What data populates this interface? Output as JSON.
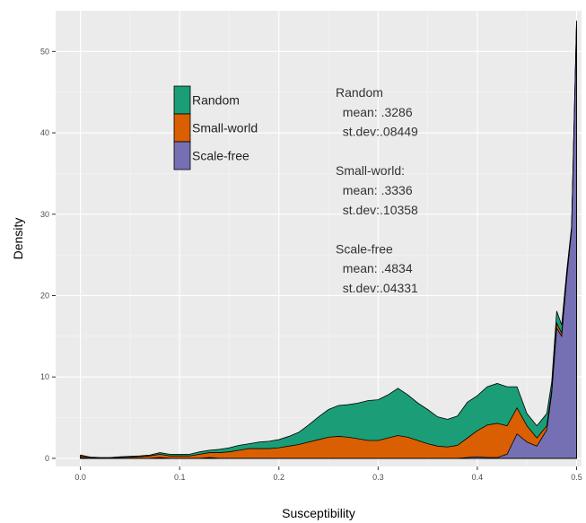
{
  "chart_data": {
    "type": "area",
    "stacked": true,
    "xlabel": "Susceptibility",
    "ylabel": "Density",
    "xlim": [
      -0.025,
      0.505
    ],
    "ylim": [
      -1,
      55
    ],
    "x_ticks": [
      0.0,
      0.1,
      0.2,
      0.3,
      0.4,
      0.5
    ],
    "x_tick_labels": [
      "0.0",
      "0.1",
      "0.2",
      "0.3",
      "0.4",
      "0.5"
    ],
    "y_ticks": [
      0,
      10,
      20,
      30,
      40,
      50
    ],
    "y_tick_labels": [
      "0",
      "10",
      "20",
      "30",
      "40",
      "50"
    ],
    "grid": true,
    "legend_position": "top-left",
    "x": [
      0.0,
      0.01,
      0.02,
      0.03,
      0.04,
      0.05,
      0.06,
      0.07,
      0.08,
      0.09,
      0.1,
      0.11,
      0.12,
      0.13,
      0.14,
      0.15,
      0.16,
      0.17,
      0.18,
      0.19,
      0.2,
      0.21,
      0.22,
      0.23,
      0.24,
      0.25,
      0.26,
      0.27,
      0.28,
      0.29,
      0.3,
      0.31,
      0.32,
      0.33,
      0.34,
      0.35,
      0.36,
      0.37,
      0.38,
      0.39,
      0.4,
      0.41,
      0.42,
      0.43,
      0.44,
      0.45,
      0.46,
      0.47,
      0.475,
      0.48,
      0.485,
      0.49,
      0.495,
      0.5
    ],
    "series": [
      {
        "name": "Scale-free",
        "color": "#7570b3",
        "values": [
          0.1,
          0,
          0,
          0,
          0,
          0,
          0,
          0,
          0.1,
          0,
          0,
          0,
          0,
          0.1,
          0,
          0,
          0,
          0,
          0,
          0,
          0,
          0,
          0,
          0,
          0,
          0,
          0,
          0,
          0,
          0,
          0,
          0,
          0,
          0,
          0,
          0,
          0,
          0,
          0,
          0.1,
          0.2,
          0.1,
          0.1,
          0.5,
          3.0,
          2.0,
          1.5,
          3.5,
          8.0,
          16.0,
          15.0,
          22.0,
          28.0,
          53.0
        ]
      },
      {
        "name": "Small-world",
        "color": "#d95f02",
        "values": [
          0.2,
          0.1,
          0.05,
          0.05,
          0.1,
          0.15,
          0.2,
          0.3,
          0.4,
          0.3,
          0.3,
          0.3,
          0.5,
          0.6,
          0.7,
          0.8,
          1.0,
          1.2,
          1.2,
          1.2,
          1.3,
          1.5,
          1.7,
          2.0,
          2.3,
          2.6,
          2.7,
          2.6,
          2.4,
          2.2,
          2.2,
          2.5,
          2.8,
          2.6,
          2.2,
          1.8,
          1.5,
          1.4,
          1.6,
          2.4,
          3.2,
          4.0,
          4.2,
          3.5,
          3.2,
          2.0,
          1.0,
          0.5,
          0.4,
          0.6,
          0.4,
          0.3,
          0.2,
          0.5
        ]
      },
      {
        "name": "Random",
        "color": "#1b9e77",
        "values": [
          0.1,
          0.05,
          0.05,
          0.05,
          0.1,
          0.1,
          0.1,
          0.1,
          0.2,
          0.2,
          0.2,
          0.2,
          0.3,
          0.3,
          0.4,
          0.5,
          0.6,
          0.6,
          0.8,
          0.9,
          1.0,
          1.2,
          1.5,
          2.1,
          2.8,
          3.4,
          3.8,
          4.0,
          4.4,
          4.9,
          5.0,
          5.3,
          5.8,
          5.2,
          4.6,
          4.2,
          3.6,
          3.4,
          3.6,
          4.4,
          4.3,
          4.7,
          4.9,
          4.8,
          2.6,
          1.5,
          1.5,
          1.5,
          1.0,
          1.5,
          1.0,
          0.6,
          0.3,
          0.3
        ]
      }
    ],
    "legend": [
      {
        "label": "Random",
        "color": "#1b9e77"
      },
      {
        "label": "Small-world",
        "color": "#d95f02"
      },
      {
        "label": "Scale-free",
        "color": "#7570b3"
      }
    ],
    "annotations": [
      "Random",
      "  mean: .3286",
      "  st.dev:.08449",
      "",
      "Small-world:",
      "  mean: .3336",
      "  st.dev:.10358",
      "",
      "Scale-free",
      "  mean: .4834",
      "  st.dev:.04331"
    ]
  }
}
